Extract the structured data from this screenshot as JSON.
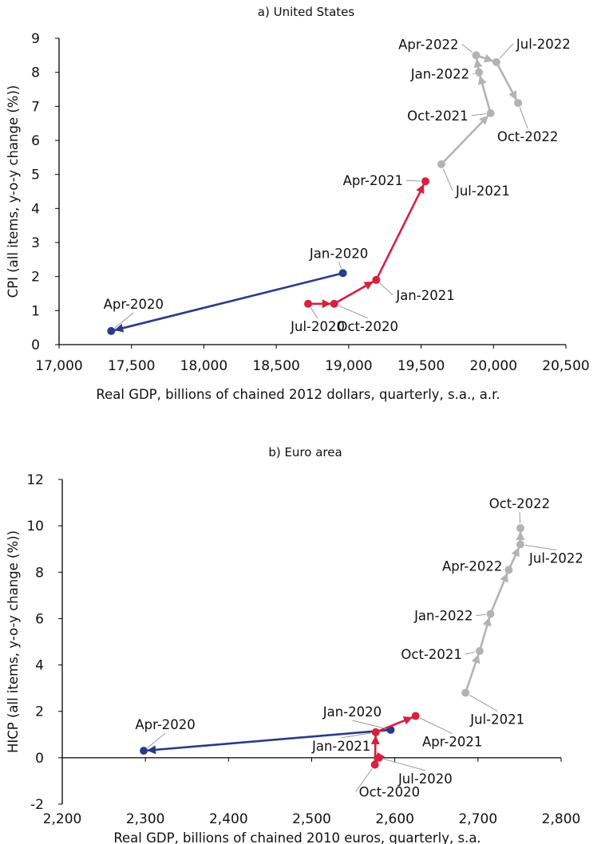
{
  "colors": {
    "phase1": "#2a3a8a",
    "phase2": "#d8203f",
    "phase3": "#b3b3b3"
  },
  "chart_data": [
    {
      "type": "scatter",
      "title": "a) United States",
      "xlabel": "Real GDP, billions of chained 2012 dollars, quarterly, s.a., a.r.",
      "ylabel": "CPI (all items, y-o-y change (%))",
      "xlim": [
        17000,
        20500
      ],
      "ylim": [
        0,
        9
      ],
      "xticks": [
        17000,
        17500,
        18000,
        18500,
        19000,
        19500,
        20000,
        20500
      ],
      "xtick_labels": [
        "17,000",
        "17,500",
        "18,000",
        "18,500",
        "19,000",
        "19,500",
        "20,000",
        "20,500"
      ],
      "yticks": [
        0,
        1,
        2,
        3,
        4,
        5,
        6,
        7,
        8,
        9
      ],
      "ytick_labels": [
        "0",
        "1",
        "2",
        "3",
        "4",
        "5",
        "6",
        "7",
        "8",
        "9"
      ],
      "series": [
        {
          "color": "phase1",
          "points": [
            [
              18960,
              2.1
            ],
            [
              17360,
              0.4
            ]
          ]
        },
        {
          "color": "phase2",
          "points": [
            [
              18720,
              1.2
            ],
            [
              18900,
              1.2
            ],
            [
              19190,
              1.9
            ],
            [
              19530,
              4.8
            ]
          ]
        },
        {
          "color": "phase3",
          "points": [
            [
              19640,
              5.3
            ],
            [
              19980,
              6.8
            ],
            [
              19900,
              8.0
            ],
            [
              19880,
              8.5
            ],
            [
              20020,
              8.3
            ],
            [
              20170,
              7.1
            ]
          ]
        }
      ],
      "annotations": [
        {
          "text": "Jan-2020",
          "x": 18960,
          "y": 2.1
        },
        {
          "text": "Apr-2020",
          "x": 17360,
          "y": 0.4
        },
        {
          "text": "Jul-2020",
          "x": 18720,
          "y": 1.2
        },
        {
          "text": "Oct-2020",
          "x": 18900,
          "y": 1.2
        },
        {
          "text": "Jan-2021",
          "x": 19190,
          "y": 1.9
        },
        {
          "text": "Apr-2021",
          "x": 19530,
          "y": 4.8
        },
        {
          "text": "Jul-2021",
          "x": 19640,
          "y": 5.3
        },
        {
          "text": "Oct-2021",
          "x": 19980,
          "y": 6.8
        },
        {
          "text": "Jan-2022",
          "x": 19900,
          "y": 8.0
        },
        {
          "text": "Apr-2022",
          "x": 19880,
          "y": 8.5
        },
        {
          "text": "Jul-2022",
          "x": 20020,
          "y": 8.3
        },
        {
          "text": "Oct-2022",
          "x": 20170,
          "y": 7.1
        }
      ]
    },
    {
      "type": "scatter",
      "title": "b) Euro area",
      "xlabel": "Real GDP, billions of chained 2010 euros, quarterly, s.a.",
      "ylabel": "HICP (all items, y-o-y change (%))",
      "xlim": [
        2200,
        2800
      ],
      "ylim": [
        -2,
        12
      ],
      "xticks": [
        2200,
        2300,
        2400,
        2500,
        2600,
        2700,
        2800
      ],
      "xtick_labels": [
        "2,200",
        "2,300",
        "2,400",
        "2,500",
        "2,600",
        "2,700",
        "2,800"
      ],
      "yticks": [
        -2,
        0,
        2,
        4,
        6,
        8,
        10,
        12
      ],
      "ytick_labels": [
        "-2",
        "0",
        "2",
        "4",
        "6",
        "8",
        "10",
        "12"
      ],
      "series": [
        {
          "color": "phase1",
          "points": [
            [
              2595,
              1.2
            ],
            [
              2298,
              0.3
            ]
          ]
        },
        {
          "color": "phase2",
          "points": [
            [
              2581,
              0.0
            ],
            [
              2576,
              -0.3
            ],
            [
              2577,
              1.1
            ],
            [
              2625,
              1.8
            ]
          ]
        },
        {
          "color": "phase3",
          "points": [
            [
              2685,
              2.8
            ],
            [
              2702,
              4.6
            ],
            [
              2715,
              6.2
            ],
            [
              2737,
              8.1
            ],
            [
              2751,
              9.2
            ],
            [
              2751,
              9.9
            ]
          ]
        }
      ],
      "annotations": [
        {
          "text": "Jan-2020",
          "x": 2595,
          "y": 1.2
        },
        {
          "text": "Apr-2020",
          "x": 2298,
          "y": 0.3
        },
        {
          "text": "Jul-2020",
          "x": 2581,
          "y": 0.0
        },
        {
          "text": "Oct-2020",
          "x": 2576,
          "y": -0.3
        },
        {
          "text": "Jan-2021",
          "x": 2577,
          "y": 1.1
        },
        {
          "text": "Apr-2021",
          "x": 2625,
          "y": 1.8
        },
        {
          "text": "Jul-2021",
          "x": 2685,
          "y": 2.8
        },
        {
          "text": "Oct-2021",
          "x": 2702,
          "y": 4.6
        },
        {
          "text": "Jan-2022",
          "x": 2715,
          "y": 6.2
        },
        {
          "text": "Apr-2022",
          "x": 2737,
          "y": 8.1
        },
        {
          "text": "Jul-2022",
          "x": 2751,
          "y": 9.2
        },
        {
          "text": "Oct-2022",
          "x": 2751,
          "y": 9.9
        }
      ]
    }
  ]
}
